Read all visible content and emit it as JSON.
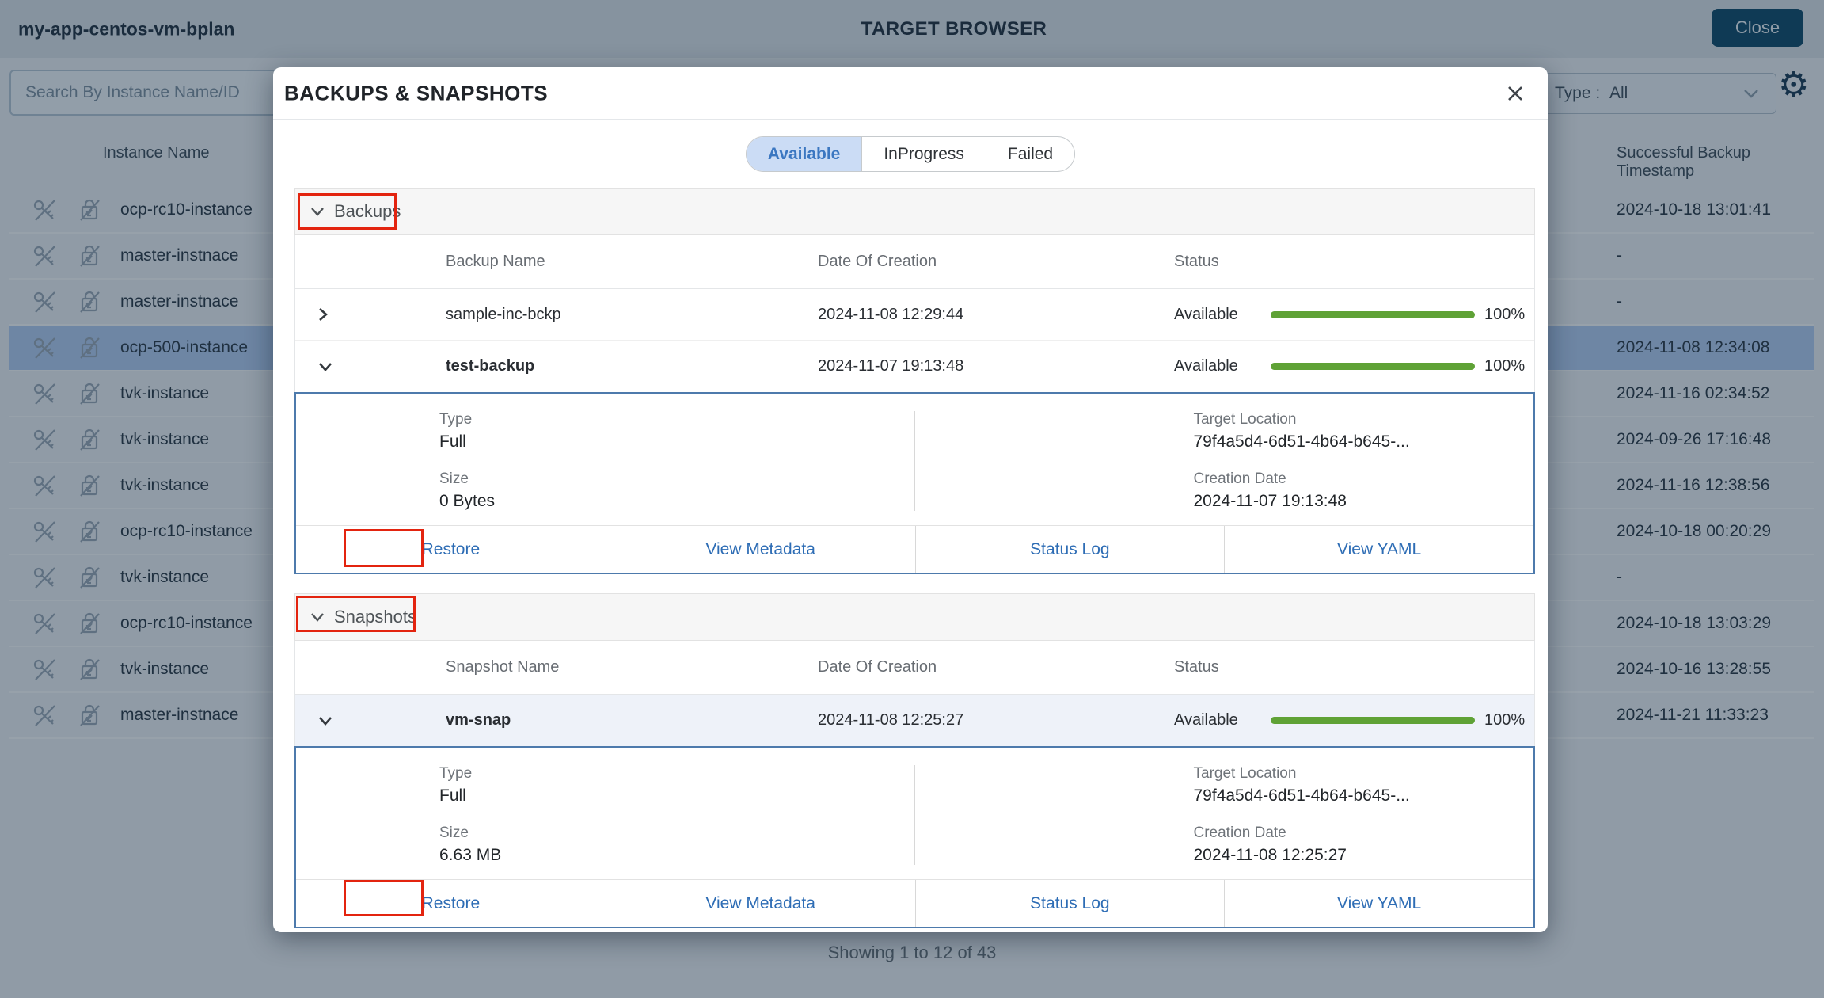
{
  "app": {
    "title": "my-app-centos-vm-bplan",
    "page_title": "TARGET BROWSER",
    "close_button": "Close",
    "search_placeholder": "Search By Instance Name/ID",
    "type_filter_label": "Type :",
    "type_filter_value": "All",
    "footer": "Showing 1 to 12 of 43",
    "icons": {
      "gear": "⚙"
    }
  },
  "background_table": {
    "columns": {
      "instance": "Instance Name",
      "timestamp": "Successful Backup Timestamp"
    },
    "rows": [
      {
        "name": "ocp-rc10-instance",
        "timestamp": "2024-10-18 13:01:41"
      },
      {
        "name": "master-instnace",
        "timestamp": "-"
      },
      {
        "name": "master-instnace",
        "timestamp": "-"
      },
      {
        "name": "ocp-500-instance",
        "timestamp": "2024-11-08 12:34:08",
        "selected": true
      },
      {
        "name": "tvk-instance",
        "timestamp": "2024-11-16 02:34:52"
      },
      {
        "name": "tvk-instance",
        "timestamp": "2024-09-26 17:16:48"
      },
      {
        "name": "tvk-instance",
        "timestamp": "2024-11-16 12:38:56"
      },
      {
        "name": "ocp-rc10-instance",
        "timestamp": "2024-10-18 00:20:29"
      },
      {
        "name": "tvk-instance",
        "timestamp": "-"
      },
      {
        "name": "ocp-rc10-instance",
        "timestamp": "2024-10-18 13:03:29"
      },
      {
        "name": "tvk-instance",
        "timestamp": "2024-10-16 13:28:55"
      },
      {
        "name": "master-instnace",
        "timestamp": "2024-11-21 11:33:23"
      }
    ]
  },
  "modal": {
    "title": "BACKUPS & SNAPSHOTS",
    "tabs": [
      {
        "label": "Available",
        "selected": true
      },
      {
        "label": "InProgress",
        "selected": false
      },
      {
        "label": "Failed",
        "selected": false
      }
    ],
    "backups": {
      "section_label": "Backups",
      "columns": {
        "name": "Backup Name",
        "date": "Date Of Creation",
        "status": "Status"
      },
      "rows": [
        {
          "name": "sample-inc-bckp",
          "date": "2024-11-08 12:29:44",
          "status": "Available",
          "progress": "100%",
          "expanded": false
        },
        {
          "name": "test-backup",
          "date": "2024-11-07 19:13:48",
          "status": "Available",
          "progress": "100%",
          "expanded": true
        }
      ],
      "details": {
        "type_label": "Type",
        "type_value": "Full",
        "size_label": "Size",
        "size_value": "0 Bytes",
        "target_location_label": "Target Location",
        "target_location_value": "79f4a5d4-6d51-4b64-b645-...",
        "creation_date_label": "Creation Date",
        "creation_date_value": "2024-11-07 19:13:48",
        "actions": [
          "Restore",
          "View Metadata",
          "Status Log",
          "View YAML"
        ]
      }
    },
    "snapshots": {
      "section_label": "Snapshots",
      "columns": {
        "name": "Snapshot Name",
        "date": "Date Of Creation",
        "status": "Status"
      },
      "rows": [
        {
          "name": "vm-snap",
          "date": "2024-11-08 12:25:27",
          "status": "Available",
          "progress": "100%",
          "expanded": true
        }
      ],
      "details": {
        "type_label": "Type",
        "type_value": "Full",
        "size_label": "Size",
        "size_value": "6.63 MB",
        "target_location_label": "Target Location",
        "target_location_value": "79f4a5d4-6d51-4b64-b645-...",
        "creation_date_label": "Creation Date",
        "creation_date_value": "2024-11-08 12:25:27",
        "actions": [
          "Restore",
          "View Metadata",
          "Status Log",
          "View YAML"
        ]
      }
    }
  },
  "colors": {
    "progress_green": "#5fa236",
    "annotation_red": "#e3240f",
    "link_blue": "#2e6db5",
    "selected_tab_bg": "#cbdcf5",
    "close_button_bg": "#114a69",
    "detail_border_blue": "#4d7aac"
  }
}
